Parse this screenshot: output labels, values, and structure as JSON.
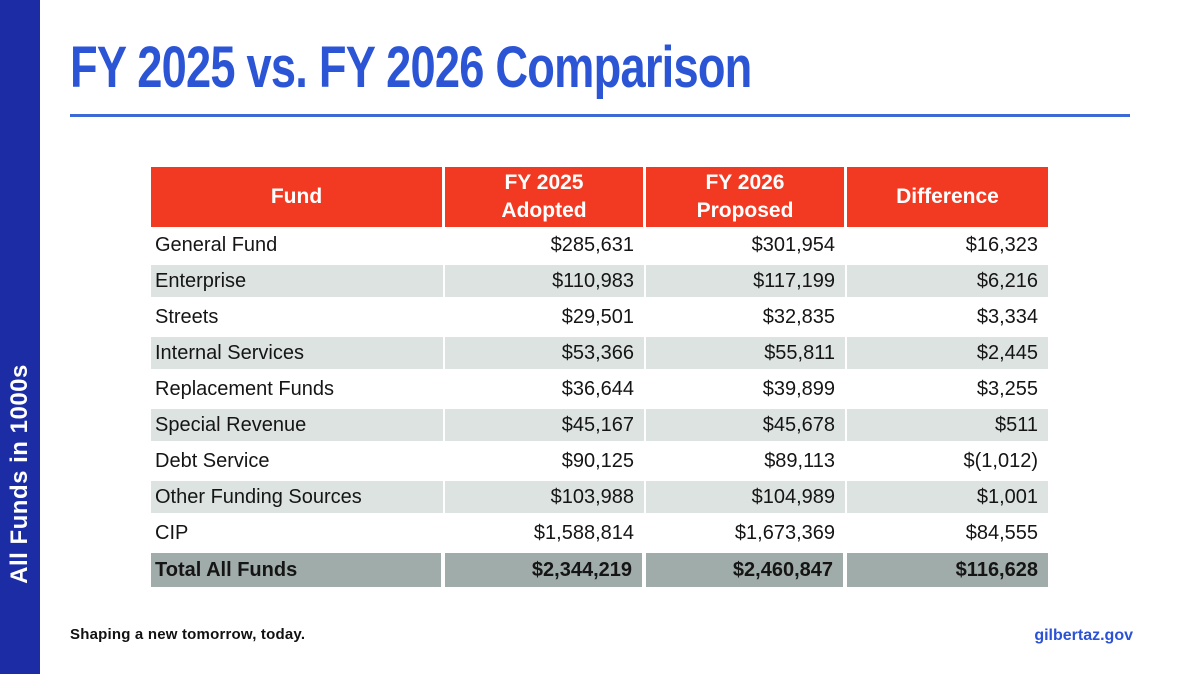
{
  "slide": {
    "title": "FY 2025 vs. FY 2026 Comparison",
    "sidebar_label": "All Funds in 1000s",
    "footer": {
      "tagline": "Shaping a new tomorrow, today.",
      "website": "gilbertaz.gov"
    }
  },
  "table": {
    "columns": [
      "Fund",
      "FY 2025\nAdopted",
      "FY 2026\nProposed",
      "Difference"
    ],
    "rows": [
      [
        "General Fund",
        "$285,631",
        "$301,954",
        "$16,323"
      ],
      [
        "Enterprise",
        "$110,983",
        "$117,199",
        "$6,216"
      ],
      [
        "Streets",
        "$29,501",
        "$32,835",
        "$3,334"
      ],
      [
        "Internal Services",
        "$53,366",
        "$55,811",
        "$2,445"
      ],
      [
        "Replacement Funds",
        "$36,644",
        "$39,899",
        "$3,255"
      ],
      [
        "Special Revenue",
        "$45,167",
        "$45,678",
        "$511"
      ],
      [
        "Debt Service",
        "$90,125",
        "$89,113",
        "$(1,012)"
      ],
      [
        "Other Funding Sources",
        "$103,988",
        "$104,989",
        "$1,001"
      ],
      [
        "CIP",
        "$1,588,814",
        "$1,673,369",
        "$84,555"
      ]
    ],
    "total": [
      "Total All Funds",
      "$2,344,219",
      "$2,460,847",
      "$116,628"
    ]
  },
  "colors": {
    "sidebar_blue": "#1B2CA4",
    "title_blue": "#2B55D4",
    "divider_blue": "#3B6AD6",
    "header_red": "#F23A22",
    "alt_row_gray": "#DCE3E1",
    "total_row_gray": "#9FACA9",
    "link_blue": "#2B52D6",
    "body_text": "#151515"
  }
}
